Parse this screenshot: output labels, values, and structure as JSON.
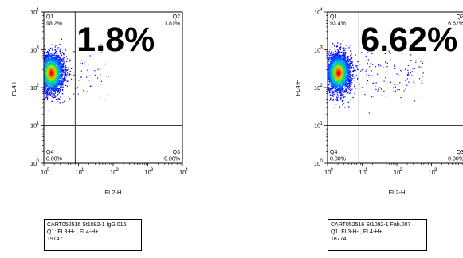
{
  "chart_data": [
    {
      "type": "scatter",
      "subtype": "flow-cytometry-density-dot-plot",
      "xlabel": "FL2-H",
      "ylabel": "FL4-H",
      "xscale": "log",
      "yscale": "log",
      "xlim": [
        1,
        10000
      ],
      "ylim": [
        1,
        10000
      ],
      "x_ticks": [
        "10",
        "10",
        "10",
        "10",
        "10"
      ],
      "x_tick_exponents": [
        "0",
        "1",
        "2",
        "3",
        "4"
      ],
      "y_ticks": [
        "10",
        "10",
        "10",
        "10",
        "10"
      ],
      "y_tick_exponents": [
        "0",
        "1",
        "2",
        "3",
        "4"
      ],
      "gate": {
        "x": 8,
        "y": 10
      },
      "quadrants": [
        {
          "name": "Q1",
          "percent": "98.2%"
        },
        {
          "name": "Q2",
          "percent": "1.81%"
        },
        {
          "name": "Q3",
          "percent": "0.00%"
        },
        {
          "name": "Q4",
          "percent": "0.00%"
        }
      ],
      "annotation": "1.8%",
      "population_center": {
        "x": 1.6,
        "y": 250
      },
      "legend_lines": [
        "CART052516 St1092-1 IgG.016",
        "Q1: FL3-H- , FL4-H+",
        "19147"
      ]
    },
    {
      "type": "scatter",
      "subtype": "flow-cytometry-density-dot-plot",
      "xlabel": "FL2-H",
      "ylabel": "FL4-H",
      "xscale": "log",
      "yscale": "log",
      "xlim": [
        1,
        10000
      ],
      "ylim": [
        1,
        10000
      ],
      "x_ticks": [
        "10",
        "10",
        "10",
        "10",
        "10"
      ],
      "x_tick_exponents": [
        "0",
        "1",
        "2",
        "3",
        "4"
      ],
      "y_ticks": [
        "10",
        "10",
        "10",
        "10",
        "10"
      ],
      "y_tick_exponents": [
        "0",
        "1",
        "2",
        "3",
        "4"
      ],
      "gate": {
        "x": 8,
        "y": 10
      },
      "quadrants": [
        {
          "name": "Q1",
          "percent": "93.4%"
        },
        {
          "name": "Q2",
          "percent": "6.62%"
        },
        {
          "name": "Q3",
          "percent": "0.00%"
        },
        {
          "name": "Q4",
          "percent": "0.00%"
        }
      ],
      "annotation": "6.62%",
      "population_center": {
        "x": 2.0,
        "y": 250
      },
      "legend_lines": [
        "CART052516 St1092-1 Fab.007",
        "Q1: FL3-H- , FL4-H+",
        "18774"
      ]
    }
  ]
}
